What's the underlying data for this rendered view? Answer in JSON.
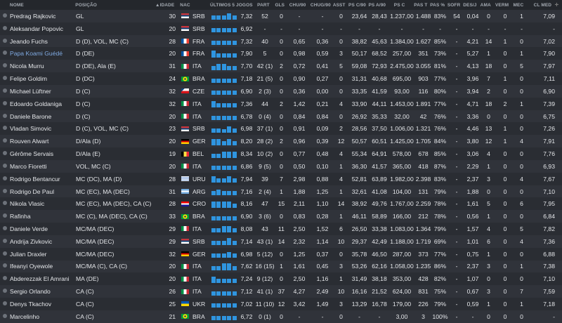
{
  "colors": {
    "accent": "#2f95e0",
    "highlight_name": "#7fa9e0",
    "background": "#2a2d33"
  },
  "header": {
    "nome": "NOME",
    "posicao": "POSIÇÃO",
    "idade": "IDADE",
    "sort_icon": "sort-up-icon",
    "nac": "NAC",
    "form": "ÚLTIMOS 5 JOGOS",
    "part": "PART",
    "gls": "GLS",
    "chu90": "CHU/90",
    "chug90": "CHUG/90",
    "asst": "ASST",
    "psc90": "PS C/90",
    "psa90": "PS A/90",
    "psc": "PS C",
    "past": "PAS T",
    "pasp": "PAS %",
    "sofr": "SOFR",
    "desj": "DES/J",
    "ama": "AMA",
    "verm": "VERM",
    "mec": "MEC",
    "clmed": "CL MED",
    "plus": "+"
  },
  "players": [
    {
      "nome": "Predrag Rajkovic",
      "pos": "GL",
      "idade": "30",
      "nac": "SRB",
      "form": [
        1,
        1,
        1,
        1.5,
        1
      ],
      "rating": "7,32",
      "part": "52",
      "gls": "0",
      "chu": "-",
      "chug": "-",
      "asst": "0",
      "psc90": "23,64",
      "psa90": "28,43",
      "psc": "1.237,00",
      "past": "1.488",
      "pasp": "83%",
      "sofr": "54",
      "desj": "0,04",
      "ama": "0",
      "verm": "0",
      "mec": "1",
      "cl": "7,09"
    },
    {
      "nome": "Aleksandar Popovic",
      "pos": "GL",
      "idade": "20",
      "nac": "SRB",
      "form": [
        1,
        1,
        1,
        1,
        1
      ],
      "rating": "6,92",
      "part": "-",
      "gls": "-",
      "chu": "-",
      "chug": "-",
      "asst": "-",
      "psc90": "-",
      "psa90": "-",
      "psc": "-",
      "past": "-",
      "pasp": "-",
      "sofr": "-",
      "desj": "-",
      "ama": "-",
      "verm": "-",
      "mec": "-",
      "cl": "-"
    },
    {
      "nome": "Jeando Fuchs",
      "pos": "D (D), VOL, MC (C)",
      "idade": "28",
      "nac": "FRA",
      "form": [
        1,
        1,
        1,
        1,
        1
      ],
      "rating": "7,32",
      "part": "40",
      "gls": "0",
      "chu": "0,65",
      "chug": "0,36",
      "asst": "0",
      "psc90": "38,82",
      "psa90": "45,63",
      "psc": "1.384,00",
      "past": "1.627",
      "pasp": "85%",
      "sofr": "-",
      "desj": "4,21",
      "ama": "14",
      "verm": "1",
      "mec": "0",
      "cl": "7,02"
    },
    {
      "nome": "Papa Koami Guédé",
      "pos": "D (DE)",
      "idade": "20",
      "nac": "FRA",
      "form": [
        1.6,
        1,
        1,
        1,
        1
      ],
      "rating": "7,90",
      "part": "5",
      "gls": "0",
      "chu": "0,98",
      "chug": "0,59",
      "asst": "3",
      "psc90": "50,17",
      "psa90": "68,52",
      "psc": "257,00",
      "past": "351",
      "pasp": "73%",
      "sofr": "-",
      "desj": "5,27",
      "ama": "1",
      "verm": "0",
      "mec": "1",
      "cl": "7,90",
      "highlight": true
    },
    {
      "nome": "Nicola Murru",
      "pos": "D (DE), Ala (E)",
      "idade": "31",
      "nac": "ITA",
      "form": [
        1,
        1.5,
        1.5,
        1,
        1
      ],
      "rating": "7,70",
      "part": "42 (1)",
      "gls": "2",
      "chu": "0,72",
      "chug": "0,41",
      "asst": "5",
      "psc90": "59,08",
      "psa90": "72,93",
      "psc": "2.475,00",
      "past": "3.055",
      "pasp": "81%",
      "sofr": "-",
      "desj": "4,13",
      "ama": "18",
      "verm": "0",
      "mec": "5",
      "cl": "7,97"
    },
    {
      "nome": "Felipe Goldim",
      "pos": "D (DC)",
      "idade": "24",
      "nac": "BRA",
      "form": [
        1,
        1,
        1,
        1,
        1
      ],
      "rating": "7,18",
      "part": "21 (5)",
      "gls": "0",
      "chu": "0,90",
      "chug": "0,27",
      "asst": "0",
      "psc90": "31,31",
      "psa90": "40,68",
      "psc": "695,00",
      "past": "903",
      "pasp": "77%",
      "sofr": "-",
      "desj": "3,96",
      "ama": "7",
      "verm": "1",
      "mec": "0",
      "cl": "7,11"
    },
    {
      "nome": "Michael Lüftner",
      "pos": "D (C)",
      "idade": "32",
      "nac": "CZE",
      "form": [
        1,
        1,
        1,
        1,
        1
      ],
      "rating": "6,90",
      "part": "2 (3)",
      "gls": "0",
      "chu": "0,36",
      "chug": "0,00",
      "asst": "0",
      "psc90": "33,35",
      "psa90": "41,59",
      "psc": "93,00",
      "past": "116",
      "pasp": "80%",
      "sofr": "-",
      "desj": "3,94",
      "ama": "2",
      "verm": "0",
      "mec": "0",
      "cl": "6,90"
    },
    {
      "nome": "Edoardo Goldaniga",
      "pos": "D (C)",
      "idade": "32",
      "nac": "ITA",
      "form": [
        1.5,
        1,
        1,
        1,
        1
      ],
      "rating": "7,36",
      "part": "44",
      "gls": "2",
      "chu": "1,42",
      "chug": "0,21",
      "asst": "4",
      "psc90": "33,90",
      "psa90": "44,11",
      "psc": "1.453,00",
      "past": "1.891",
      "pasp": "77%",
      "sofr": "-",
      "desj": "4,71",
      "ama": "18",
      "verm": "2",
      "mec": "1",
      "cl": "7,39"
    },
    {
      "nome": "Daniele Barone",
      "pos": "D (C)",
      "idade": "20",
      "nac": "ITA",
      "form": [
        1,
        1,
        1,
        1,
        1
      ],
      "rating": "6,78",
      "part": "0 (4)",
      "gls": "0",
      "chu": "0,84",
      "chug": "0,84",
      "asst": "0",
      "psc90": "26,92",
      "psa90": "35,33",
      "psc": "32,00",
      "past": "42",
      "pasp": "76%",
      "sofr": "-",
      "desj": "3,36",
      "ama": "0",
      "verm": "0",
      "mec": "0",
      "cl": "6,75"
    },
    {
      "nome": "Vladan Simovic",
      "pos": "D (C), VOL, MC (C)",
      "idade": "23",
      "nac": "SRB",
      "form": [
        1,
        1,
        0.85,
        1.4,
        1
      ],
      "rating": "6,98",
      "part": "37 (1)",
      "gls": "0",
      "chu": "0,91",
      "chug": "0,09",
      "asst": "2",
      "psc90": "28,56",
      "psa90": "37,50",
      "psc": "1.006,00",
      "past": "1.321",
      "pasp": "76%",
      "sofr": "-",
      "desj": "4,46",
      "ama": "13",
      "verm": "1",
      "mec": "0",
      "cl": "7,26"
    },
    {
      "nome": "Rouven Alwart",
      "pos": "D/Ala (D)",
      "idade": "20",
      "nac": "GER",
      "form": [
        1.5,
        1.5,
        1,
        1.5,
        1
      ],
      "rating": "8,20",
      "part": "28 (2)",
      "gls": "2",
      "chu": "0,96",
      "chug": "0,39",
      "asst": "12",
      "psc90": "50,57",
      "psa90": "60,51",
      "psc": "1.425,00",
      "past": "1.705",
      "pasp": "84%",
      "sofr": "-",
      "desj": "3,80",
      "ama": "12",
      "verm": "1",
      "mec": "4",
      "cl": "7,91"
    },
    {
      "nome": "Gérôme Servais",
      "pos": "D/Ala (E)",
      "idade": "19",
      "nac": "BEL",
      "form": [
        1,
        1,
        1.5,
        1.5,
        1.5
      ],
      "rating": "8,34",
      "part": "10 (2)",
      "gls": "0",
      "chu": "0,77",
      "chug": "0,48",
      "asst": "4",
      "psc90": "55,34",
      "psa90": "64,91",
      "psc": "578,00",
      "past": "678",
      "pasp": "85%",
      "sofr": "-",
      "desj": "3,06",
      "ama": "4",
      "verm": "0",
      "mec": "0",
      "cl": "7,76"
    },
    {
      "nome": "Marco Fioretti",
      "pos": "VOL, MC (C)",
      "idade": "20",
      "nac": "ITA",
      "form": [
        1,
        1,
        1,
        1,
        1
      ],
      "rating": "6,86",
      "part": "9 (5)",
      "gls": "0",
      "chu": "0,50",
      "chug": "0,10",
      "asst": "1",
      "psc90": "36,30",
      "psa90": "41,57",
      "psc": "365,00",
      "past": "418",
      "pasp": "87%",
      "sofr": "-",
      "desj": "2,29",
      "ama": "1",
      "verm": "0",
      "mec": "0",
      "cl": "6,93"
    },
    {
      "nome": "Rodrigo Bentancur",
      "pos": "MC (DC), MA (D)",
      "idade": "28",
      "nac": "URU",
      "form": [
        1.5,
        1,
        1,
        1.5,
        1
      ],
      "rating": "7,94",
      "part": "39",
      "gls": "7",
      "chu": "2,98",
      "chug": "0,88",
      "asst": "4",
      "psc90": "52,81",
      "psa90": "63,89",
      "psc": "1.982,00",
      "past": "2.398",
      "pasp": "83%",
      "sofr": "-",
      "desj": "2,37",
      "ama": "3",
      "verm": "0",
      "mec": "4",
      "cl": "7,67"
    },
    {
      "nome": "Rodrigo De Paul",
      "pos": "MC (EC), MA (DEC)",
      "idade": "31",
      "nac": "ARG",
      "form": [
        1,
        1.4,
        1,
        1,
        1
      ],
      "rating": "7,16",
      "part": "2 (4)",
      "gls": "1",
      "chu": "1,88",
      "chug": "1,25",
      "asst": "1",
      "psc90": "32,61",
      "psa90": "41,08",
      "psc": "104,00",
      "past": "131",
      "pasp": "79%",
      "sofr": "-",
      "desj": "1,88",
      "ama": "0",
      "verm": "0",
      "mec": "0",
      "cl": "7,10"
    },
    {
      "nome": "Nikola Vlasic",
      "pos": "MC (EC), MA (DEC), CA (C)",
      "idade": "28",
      "nac": "CRO",
      "form": [
        1.5,
        1.5,
        1.5,
        1.4,
        1
      ],
      "rating": "8,16",
      "part": "47",
      "gls": "15",
      "chu": "2,11",
      "chug": "1,10",
      "asst": "14",
      "psc90": "38,92",
      "psa90": "49,76",
      "psc": "1.767,00",
      "past": "2.259",
      "pasp": "78%",
      "sofr": "-",
      "desj": "1,61",
      "ama": "5",
      "verm": "0",
      "mec": "6",
      "cl": "7,95"
    },
    {
      "nome": "Rafinha",
      "pos": "MC (C), MA (DEC), CA (C)",
      "idade": "33",
      "nac": "BRA",
      "form": [
        1,
        1,
        1,
        1,
        1
      ],
      "rating": "6,90",
      "part": "3 (6)",
      "gls": "0",
      "chu": "0,83",
      "chug": "0,28",
      "asst": "1",
      "psc90": "46,11",
      "psa90": "58,89",
      "psc": "166,00",
      "past": "212",
      "pasp": "78%",
      "sofr": "-",
      "desj": "0,56",
      "ama": "1",
      "verm": "0",
      "mec": "0",
      "cl": "6,84"
    },
    {
      "nome": "Daniele Verde",
      "pos": "MC/MA (DEC)",
      "idade": "29",
      "nac": "ITA",
      "form": [
        1,
        1,
        1.5,
        1.5,
        1
      ],
      "rating": "8,08",
      "part": "43",
      "gls": "11",
      "chu": "2,50",
      "chug": "1,52",
      "asst": "6",
      "psc90": "26,50",
      "psa90": "33,38",
      "psc": "1.083,00",
      "past": "1.364",
      "pasp": "79%",
      "sofr": "-",
      "desj": "1,57",
      "ama": "4",
      "verm": "0",
      "mec": "5",
      "cl": "7,82"
    },
    {
      "nome": "Andrija Zivkovic",
      "pos": "MC/MA (DEC)",
      "idade": "29",
      "nac": "SRB",
      "form": [
        1,
        1,
        1,
        1.8,
        1
      ],
      "rating": "7,14",
      "part": "43 (1)",
      "gls": "14",
      "chu": "2,32",
      "chug": "1,14",
      "asst": "10",
      "psc90": "29,37",
      "psa90": "42,49",
      "psc": "1.188,00",
      "past": "1.719",
      "pasp": "69%",
      "sofr": "-",
      "desj": "1,01",
      "ama": "6",
      "verm": "0",
      "mec": "4",
      "cl": "7,36"
    },
    {
      "nome": "Julian Draxler",
      "pos": "MC/MA (DEC)",
      "idade": "32",
      "nac": "GER",
      "form": [
        1,
        1,
        1,
        1.4,
        1
      ],
      "rating": "6,98",
      "part": "5 (12)",
      "gls": "0",
      "chu": "1,25",
      "chug": "0,37",
      "asst": "0",
      "psc90": "35,78",
      "psa90": "46,50",
      "psc": "287,00",
      "past": "373",
      "pasp": "77%",
      "sofr": "-",
      "desj": "0,75",
      "ama": "1",
      "verm": "0",
      "mec": "0",
      "cl": "6,88"
    },
    {
      "nome": "Ifeanyi Oyewole",
      "pos": "MC/MA (C), CA (C)",
      "idade": "20",
      "nac": "ITA",
      "form": [
        1,
        1,
        1.6,
        1.6,
        1
      ],
      "rating": "7,62",
      "part": "16 (15)",
      "gls": "1",
      "chu": "1,61",
      "chug": "0,45",
      "asst": "3",
      "psc90": "53,26",
      "psa90": "62,16",
      "psc": "1.058,00",
      "past": "1.235",
      "pasp": "86%",
      "sofr": "-",
      "desj": "2,37",
      "ama": "3",
      "verm": "0",
      "mec": "1",
      "cl": "7,38"
    },
    {
      "nome": "Abderezzak El Amrani",
      "pos": "MA (DE)",
      "idade": "20",
      "nac": "ITA",
      "form": [
        1.5,
        1,
        1,
        1,
        1
      ],
      "rating": "7,24",
      "part": "9 (12)",
      "gls": "0",
      "chu": "2,50",
      "chug": "1,16",
      "asst": "1",
      "psc90": "31,49",
      "psa90": "38,18",
      "psc": "353,00",
      "past": "428",
      "pasp": "82%",
      "sofr": "-",
      "desj": "1,07",
      "ama": "0",
      "verm": "0",
      "mec": "0",
      "cl": "7,10"
    },
    {
      "nome": "Sergio Orlando",
      "pos": "CA (C)",
      "idade": "26",
      "nac": "ITA",
      "form": [
        1,
        1,
        1,
        1,
        1
      ],
      "rating": "7,12",
      "part": "41 (1)",
      "gls": "37",
      "chu": "4,27",
      "chug": "2,49",
      "asst": "10",
      "psc90": "16,16",
      "psa90": "21,52",
      "psc": "624,00",
      "past": "831",
      "pasp": "75%",
      "sofr": "-",
      "desj": "0,67",
      "ama": "3",
      "verm": "0",
      "mec": "7",
      "cl": "7,59"
    },
    {
      "nome": "Denys Tkachov",
      "pos": "CA (C)",
      "idade": "25",
      "nac": "UKR",
      "form": [
        1,
        1,
        1,
        1,
        1
      ],
      "rating": "7,02",
      "part": "11 (10)",
      "gls": "12",
      "chu": "3,42",
      "chug": "1,49",
      "asst": "3",
      "psc90": "13,29",
      "psa90": "16,78",
      "psc": "179,00",
      "past": "226",
      "pasp": "79%",
      "sofr": "-",
      "desj": "0,59",
      "ama": "1",
      "verm": "0",
      "mec": "1",
      "cl": "7,18"
    },
    {
      "nome": "Marcelinho",
      "pos": "CA (C)",
      "idade": "21",
      "nac": "BRA",
      "form": [
        1,
        1,
        1,
        1,
        1
      ],
      "rating": "6,72",
      "part": "0 (1)",
      "gls": "0",
      "chu": "-",
      "chug": "-",
      "asst": "0",
      "psc90": "-",
      "psa90": "-",
      "psc": "3,00",
      "past": "3",
      "pasp": "100%",
      "sofr": "-",
      "desj": "-",
      "ama": "0",
      "verm": "0",
      "mec": "0",
      "cl": "-"
    }
  ]
}
